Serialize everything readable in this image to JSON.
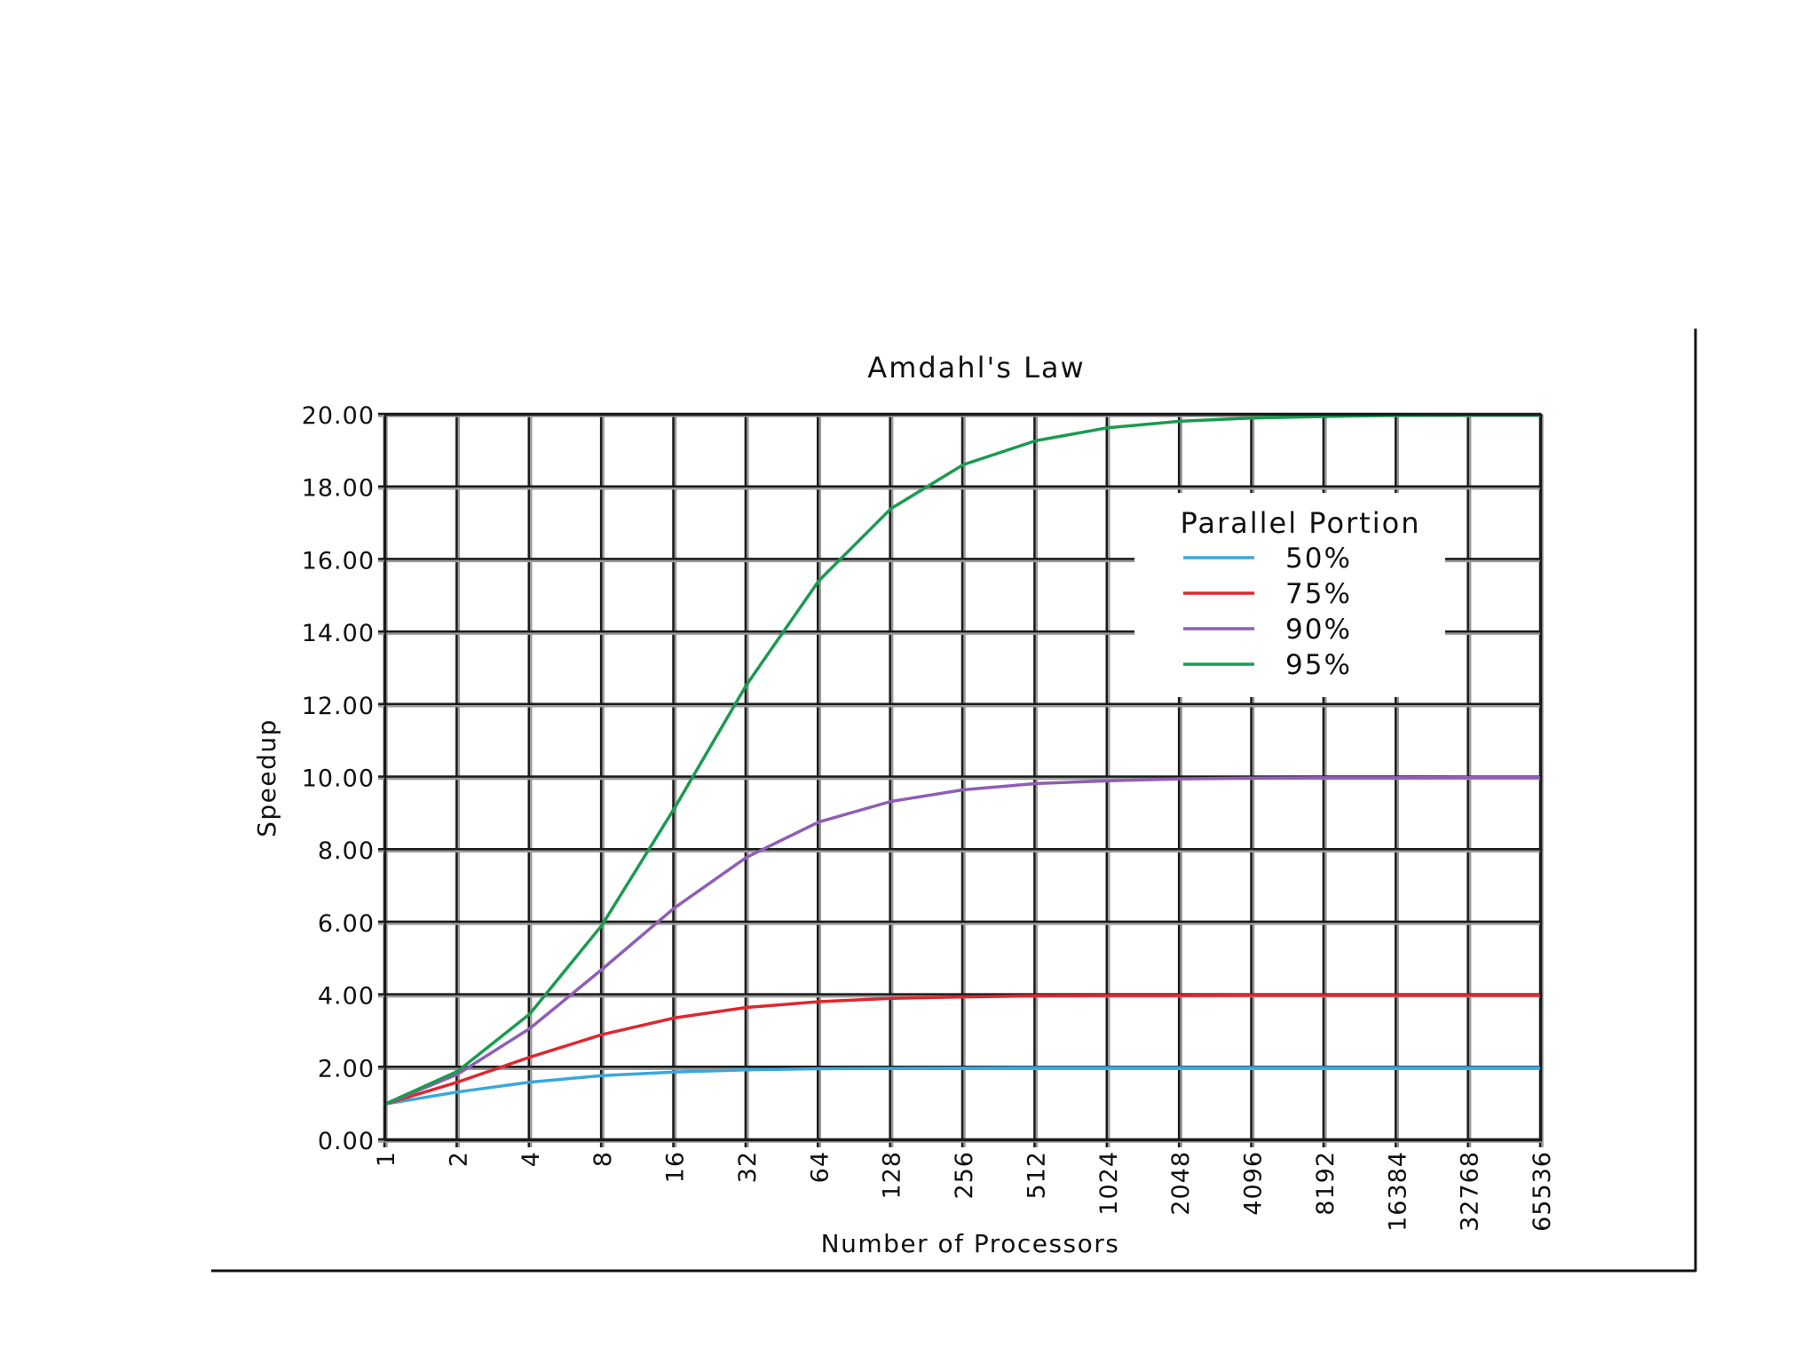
{
  "chart_data": {
    "type": "line",
    "title": "Amdahl's Law",
    "xlabel": "Number of Processors",
    "ylabel": "Speedup",
    "x_scale": "log2",
    "x": [
      1,
      2,
      4,
      8,
      16,
      32,
      64,
      128,
      256,
      512,
      1024,
      2048,
      4096,
      8192,
      16384,
      32768,
      65536
    ],
    "x_tick_labels": [
      "1",
      "2",
      "4",
      "8",
      "16",
      "32",
      "64",
      "128",
      "256",
      "512",
      "1024",
      "2048",
      "4096",
      "8192",
      "16384",
      "32768",
      "65536"
    ],
    "ylim": [
      0,
      20
    ],
    "y_tick_labels": [
      "0.00",
      "2.00",
      "4.00",
      "6.00",
      "8.00",
      "10.00",
      "12.00",
      "14.00",
      "16.00",
      "18.00",
      "20.00"
    ],
    "grid": true,
    "legend": {
      "title": "Parallel Portion",
      "placement": "upper-right"
    },
    "series": [
      {
        "name": "50%",
        "color": "#3aa7dd",
        "values": [
          1.0,
          1.33,
          1.6,
          1.78,
          1.88,
          1.94,
          1.97,
          1.98,
          1.99,
          2.0,
          2.0,
          2.0,
          2.0,
          2.0,
          2.0,
          2.0,
          2.0
        ]
      },
      {
        "name": "75%",
        "color": "#e0262e",
        "values": [
          1.0,
          1.6,
          2.29,
          2.91,
          3.37,
          3.66,
          3.82,
          3.91,
          3.95,
          3.98,
          3.99,
          3.99,
          4.0,
          4.0,
          4.0,
          4.0,
          4.0
        ]
      },
      {
        "name": "90%",
        "color": "#8f5db5",
        "values": [
          1.0,
          1.82,
          3.08,
          4.71,
          6.4,
          7.8,
          8.77,
          9.34,
          9.66,
          9.83,
          9.91,
          9.96,
          9.98,
          9.99,
          9.99,
          10.0,
          10.0
        ]
      },
      {
        "name": "95%",
        "color": "#1a9b50",
        "values": [
          1.0,
          1.9,
          3.48,
          5.93,
          9.14,
          12.55,
          15.42,
          17.41,
          18.62,
          19.28,
          19.64,
          19.82,
          19.91,
          19.95,
          19.98,
          19.99,
          19.99
        ]
      }
    ]
  }
}
